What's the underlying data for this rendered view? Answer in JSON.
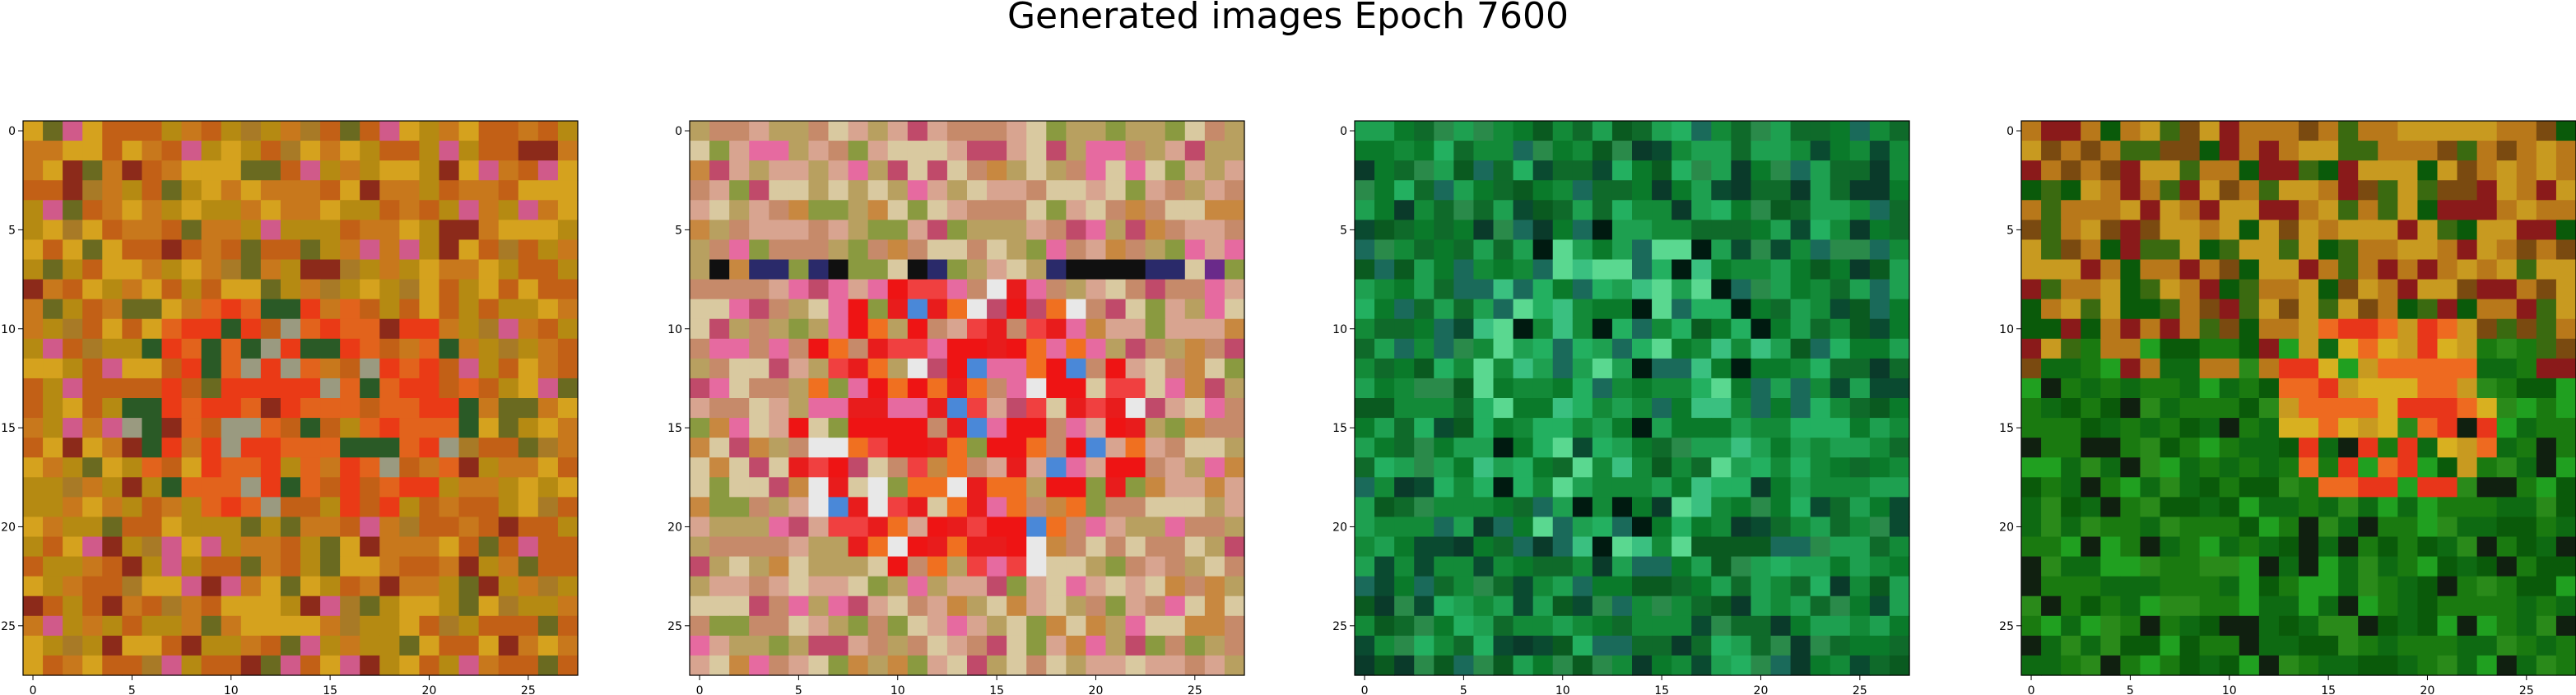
{
  "title": "Generated images Epoch 7600",
  "chart_data": {
    "type": "heatmap",
    "title": "Generated images Epoch 7600",
    "grid": false,
    "panels": [
      {
        "name": "",
        "xticks": [
          0,
          5,
          10,
          15,
          20,
          25
        ],
        "yticks": [
          0,
          5,
          10,
          15,
          20,
          25
        ],
        "xlim": [
          -0.5,
          27.5
        ],
        "ylim": [
          27.5,
          -0.5
        ],
        "rows": 28,
        "cols": 28,
        "palette": [
          "#c8781c",
          "#b58a12",
          "#d5a21e",
          "#c26016",
          "#a87a26",
          "#e2631c",
          "#ea3a16",
          "#8c2a1a",
          "#d05a8a",
          "#6a6a20",
          "#2a5a26",
          "#9a9a80"
        ],
        "base_mix": [
          0,
          1,
          2,
          3,
          4,
          0,
          1,
          2,
          3,
          8,
          9,
          0,
          1,
          3,
          7,
          2
        ],
        "center": {
          "cx": 13.5,
          "cy": 14,
          "rx": 9,
          "ry": 6,
          "colors": [
            5,
            6,
            5,
            3,
            6,
            11,
            10,
            5
          ]
        }
      },
      {
        "name": "",
        "xticks": [
          0,
          5,
          10,
          15,
          20,
          25
        ],
        "yticks": [
          0,
          5,
          10,
          15,
          20,
          25
        ],
        "xlim": [
          -0.5,
          27.5
        ],
        "ylim": [
          27.5,
          -0.5
        ],
        "rows": 28,
        "cols": 28,
        "palette": [
          "#c68a6a",
          "#d8a490",
          "#b8a060",
          "#d9c9a0",
          "#c88840",
          "#ee1414",
          "#f04040",
          "#f07020",
          "#e81c1c",
          "#e66aa0",
          "#2a2a6a",
          "#6a2a8a",
          "#101010",
          "#4a88d8",
          "#e8e8e8",
          "#8a9a40",
          "#c04a6a"
        ],
        "base_mix": [
          0,
          1,
          2,
          3,
          4,
          0,
          1,
          15,
          16,
          2,
          3,
          9
        ],
        "center": {
          "cx": 13.5,
          "cy": 15,
          "rx": 9,
          "ry": 8,
          "colors": [
            5,
            6,
            7,
            8,
            5,
            8,
            9,
            14,
            13,
            7,
            0
          ]
        },
        "band": {
          "row": 7,
          "colors": [
            10,
            11,
            12,
            2,
            15,
            10
          ]
        }
      },
      {
        "name": "",
        "xticks": [
          0,
          5,
          10,
          15,
          20,
          25
        ],
        "yticks": [
          0,
          5,
          10,
          15,
          20,
          25
        ],
        "xlim": [
          -0.5,
          27.5
        ],
        "ylim": [
          27.5,
          -0.5
        ],
        "rows": 28,
        "cols": 28,
        "palette": [
          "#0a7a2a",
          "#138a38",
          "#0f6a2a",
          "#1ea050",
          "#0a5a20",
          "#23b060",
          "#3ac080",
          "#0a4a30",
          "#1a6a5a",
          "#2a8a4a",
          "#001a10",
          "#5ad890",
          "#0a3a2a"
        ],
        "base_mix": [
          0,
          1,
          2,
          3,
          4,
          5,
          0,
          1,
          2,
          7,
          8,
          9,
          3,
          12
        ],
        "center": {
          "cx": 13,
          "cy": 13,
          "rx": 8,
          "ry": 9,
          "colors": [
            5,
            6,
            11,
            3,
            10,
            1,
            8,
            0
          ]
        }
      },
      {
        "name": "",
        "xticks": [
          0,
          5,
          10,
          15,
          20,
          25
        ],
        "yticks": [
          0,
          5,
          10,
          15,
          20,
          25
        ],
        "xlim": [
          -0.5,
          27.5
        ],
        "ylim": [
          27.5,
          -0.5
        ],
        "rows": 28,
        "cols": 28,
        "palette": [
          "#1a7a10",
          "#0e6a12",
          "#2a8a1a",
          "#0a5a0a",
          "#b8781a",
          "#c89a20",
          "#7a4a10",
          "#3a6a10",
          "#e8361a",
          "#ee6a20",
          "#d8b020",
          "#8a1a1a",
          "#20a020",
          "#102010"
        ],
        "top_mix": [
          4,
          5,
          6,
          7,
          4,
          5,
          11,
          3
        ],
        "bottom_mix": [
          0,
          1,
          2,
          3,
          0,
          12,
          1,
          13
        ],
        "center": {
          "cx": 18,
          "cy": 14,
          "rx": 6,
          "ry": 5,
          "colors": [
            8,
            9,
            10,
            8,
            5,
            9
          ]
        }
      }
    ]
  }
}
